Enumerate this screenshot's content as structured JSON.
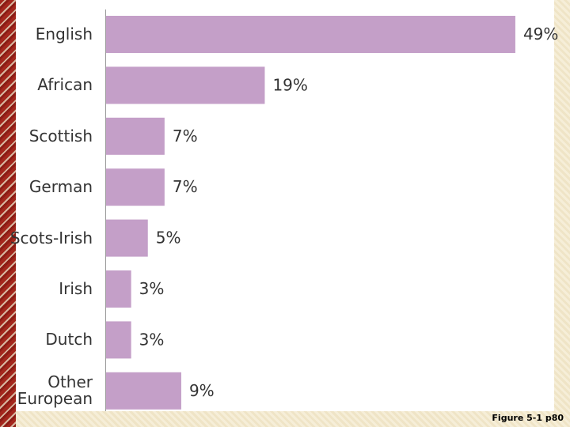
{
  "chart_data": {
    "type": "bar",
    "orientation": "horizontal",
    "categories": [
      "English",
      "African",
      "Scottish",
      "German",
      "Scots-Irish",
      "Irish",
      "Dutch",
      "Other European"
    ],
    "values": [
      49,
      19,
      7,
      7,
      5,
      3,
      3,
      9
    ],
    "value_labels": [
      "49%",
      "19%",
      "7%",
      "7%",
      "5%",
      "3%",
      "3%",
      "9%"
    ],
    "color": "#c49fc8",
    "caption": "Figure 5-1 p80"
  }
}
